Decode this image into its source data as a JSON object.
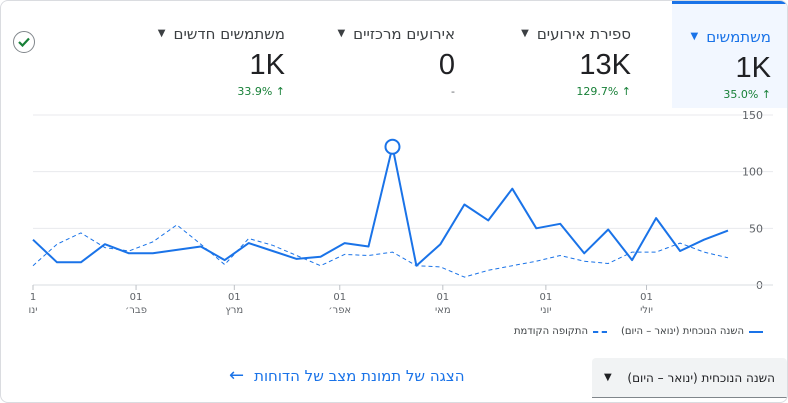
{
  "metrics": [
    {
      "label": "משתמשים",
      "value": "1K",
      "change": "35.0%",
      "arrow": "↑",
      "active": true
    },
    {
      "label": "ספירת אירועים",
      "value": "13K",
      "change": "129.7%",
      "arrow": "↑",
      "active": false
    },
    {
      "label": "אירועים מרכזיים",
      "value": "0",
      "change": "-",
      "arrow": "",
      "active": false
    },
    {
      "label": "משתמשים חדשים",
      "value": "1K",
      "change": "33.9%",
      "arrow": "↑",
      "active": false
    }
  ],
  "chart_data": {
    "type": "line",
    "ylim": [
      0,
      150
    ],
    "y_ticks": [
      "150",
      "100",
      "50",
      "0"
    ],
    "y_tick_values": [
      150,
      100,
      50,
      0
    ],
    "x_tick_labels": [
      {
        "day": "1",
        "month": "ינו"
      },
      {
        "day": "01",
        "month": "פבר׳"
      },
      {
        "day": "01",
        "month": "מרץ"
      },
      {
        "day": "01",
        "month": "אפר׳"
      },
      {
        "day": "01",
        "month": "מאי"
      },
      {
        "day": "01",
        "month": "יוני"
      },
      {
        "day": "01",
        "month": "יולי"
      }
    ],
    "x_tick_index": [
      0,
      4.3,
      8.4,
      12.8,
      17.1,
      21.4,
      25.6
    ],
    "series": [
      {
        "name": "השנה הנוכחית (ינואר – היום)",
        "style": "solid",
        "highlight_index": 15,
        "values": [
          40,
          20,
          20,
          36,
          28,
          28,
          31,
          34,
          22,
          37,
          30,
          23,
          25,
          37,
          34,
          122,
          17,
          36,
          71,
          57,
          85,
          50,
          54,
          28,
          49,
          22,
          59,
          30,
          40,
          48
        ]
      },
      {
        "name": "התקופה הקודמת",
        "style": "dashed",
        "values": [
          17,
          36,
          46,
          33,
          30,
          38,
          53,
          36,
          18,
          41,
          35,
          26,
          17,
          27,
          26,
          29,
          17,
          16,
          7,
          13,
          17,
          21,
          26,
          21,
          19,
          29,
          29,
          37,
          29,
          24
        ]
      }
    ],
    "color": "#1a73e8",
    "grid": true
  },
  "legend": {
    "current": "השנה הנוכחית (ינואר – היום)",
    "previous": "התקופה הקודמת"
  },
  "date_range": {
    "label": "השנה הנוכחית (ינואר – היום)"
  },
  "snapshot_link": {
    "label": "הצגה של תמונת מצב של הדוחות"
  }
}
